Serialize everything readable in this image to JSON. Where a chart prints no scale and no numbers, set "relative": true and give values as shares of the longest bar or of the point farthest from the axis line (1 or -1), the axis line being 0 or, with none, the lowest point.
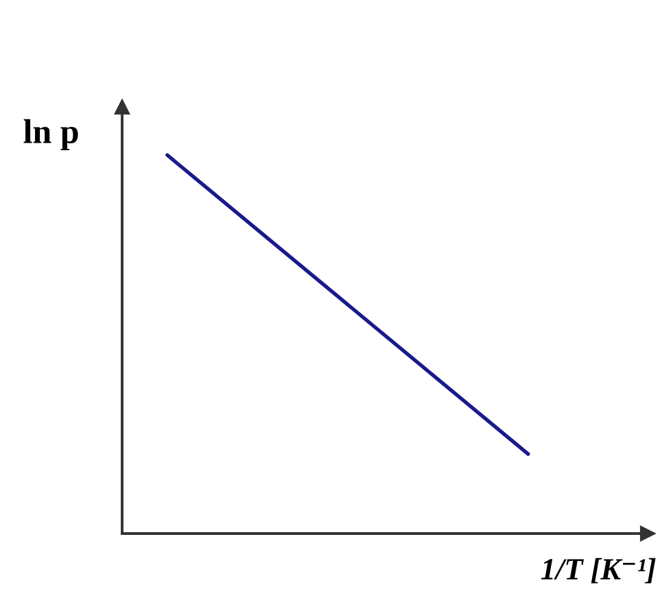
{
  "chart_data": {
    "type": "line",
    "relative": true,
    "xlabel": "1/T [K⁻¹]",
    "ylabel": "ln p",
    "categories": [
      null,
      null
    ],
    "series": [
      {
        "color": "#1a1a8c",
        "values": [
          1,
          0.21
        ]
      }
    ],
    "marker": "none",
    "line_style": "solid"
  }
}
